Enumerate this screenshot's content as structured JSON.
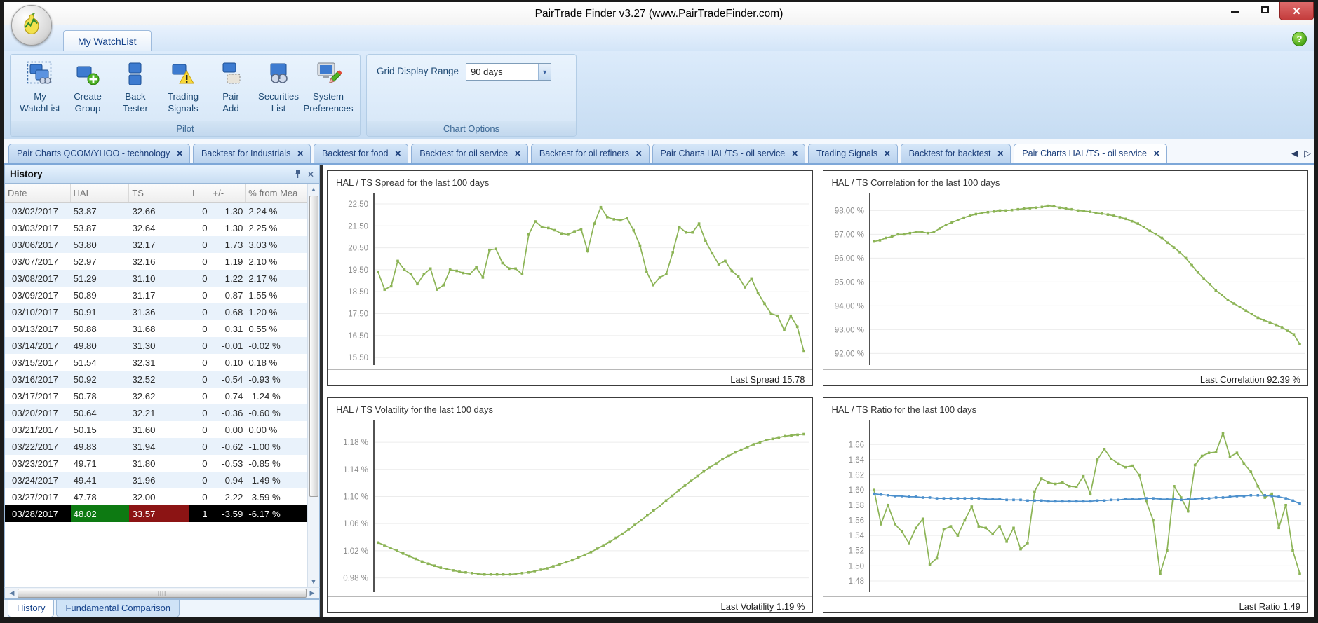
{
  "window": {
    "title": "PairTrade Finder v3.27 (www.PairTradeFinder.com)"
  },
  "icons": {
    "close": "✕",
    "help": "?",
    "dropdown_arrow": "▼",
    "scroll_up": "▲",
    "scroll_down": "▼",
    "scroll_left": "◀",
    "scroll_right": "▶",
    "tab_nav_left": "◀",
    "tab_nav_right": "▷",
    "hthumb_grip": "||||"
  },
  "ribbon": {
    "tab_first": "M",
    "tab_rest": "y WatchList",
    "pilot_caption": "Pilot",
    "chart_options_caption": "Chart Options",
    "grid_display_range_label": "Grid Display Range",
    "grid_display_range_value": "90 days",
    "buttons": [
      {
        "line1": "My",
        "line2": "WatchList",
        "icon": "my-watchlist-icon"
      },
      {
        "line1": "Create",
        "line2": "Group",
        "icon": "create-group-icon"
      },
      {
        "line1": "Back",
        "line2": "Tester",
        "icon": "back-tester-icon"
      },
      {
        "line1": "Trading",
        "line2": "Signals",
        "icon": "trading-signals-icon"
      },
      {
        "line1": "Pair",
        "line2": "Add",
        "icon": "pair-add-icon"
      },
      {
        "line1": "Securities",
        "line2": "List",
        "icon": "securities-list-icon"
      },
      {
        "line1": "System",
        "line2": "Preferences",
        "icon": "system-preferences-icon"
      }
    ]
  },
  "doc_tabs": [
    {
      "label": "Pair Charts QCOM/YHOO - technology",
      "active": false
    },
    {
      "label": "Backtest for Industrials",
      "active": false
    },
    {
      "label": "Backtest for food",
      "active": false
    },
    {
      "label": "Backtest for oil service",
      "active": false
    },
    {
      "label": "Backtest for oil refiners",
      "active": false
    },
    {
      "label": "Pair Charts HAL/TS - oil service",
      "active": false
    },
    {
      "label": "Trading Signals",
      "active": false
    },
    {
      "label": "Backtest for backtest",
      "active": false
    },
    {
      "label": "Pair Charts HAL/TS - oil service",
      "active": true
    }
  ],
  "history": {
    "title": "History",
    "columns": [
      "Date",
      "HAL",
      "TS",
      "L",
      "+/-",
      "% from Mea"
    ],
    "rows": [
      [
        "03/02/2017",
        "53.87",
        "32.66",
        "0",
        "1.30",
        "2.24 %"
      ],
      [
        "03/03/2017",
        "53.87",
        "32.64",
        "0",
        "1.30",
        "2.25 %"
      ],
      [
        "03/06/2017",
        "53.80",
        "32.17",
        "0",
        "1.73",
        "3.03 %"
      ],
      [
        "03/07/2017",
        "52.97",
        "32.16",
        "0",
        "1.19",
        "2.10 %"
      ],
      [
        "03/08/2017",
        "51.29",
        "31.10",
        "0",
        "1.22",
        "2.17 %"
      ],
      [
        "03/09/2017",
        "50.89",
        "31.17",
        "0",
        "0.87",
        "1.55 %"
      ],
      [
        "03/10/2017",
        "50.91",
        "31.36",
        "0",
        "0.68",
        "1.20 %"
      ],
      [
        "03/13/2017",
        "50.88",
        "31.68",
        "0",
        "0.31",
        "0.55 %"
      ],
      [
        "03/14/2017",
        "49.80",
        "31.30",
        "0",
        "-0.01",
        "-0.02 %"
      ],
      [
        "03/15/2017",
        "51.54",
        "32.31",
        "0",
        "0.10",
        "0.18 %"
      ],
      [
        "03/16/2017",
        "50.92",
        "32.52",
        "0",
        "-0.54",
        "-0.93 %"
      ],
      [
        "03/17/2017",
        "50.78",
        "32.62",
        "0",
        "-0.74",
        "-1.24 %"
      ],
      [
        "03/20/2017",
        "50.64",
        "32.21",
        "0",
        "-0.36",
        "-0.60 %"
      ],
      [
        "03/21/2017",
        "50.15",
        "31.60",
        "0",
        "0.00",
        "0.00 %"
      ],
      [
        "03/22/2017",
        "49.83",
        "31.94",
        "0",
        "-0.62",
        "-1.00 %"
      ],
      [
        "03/23/2017",
        "49.71",
        "31.80",
        "0",
        "-0.53",
        "-0.85 %"
      ],
      [
        "03/24/2017",
        "49.41",
        "31.96",
        "0",
        "-0.94",
        "-1.49 %"
      ],
      [
        "03/27/2017",
        "47.78",
        "32.00",
        "0",
        "-2.22",
        "-3.59 %"
      ],
      [
        "03/28/2017",
        "48.02",
        "33.57",
        "1",
        "-3.59",
        "-6.17 %"
      ]
    ],
    "selected_row_index": 18,
    "bottom_tabs": [
      {
        "label": "History",
        "active": true
      },
      {
        "label": "Fundamental Comparison",
        "active": false
      }
    ]
  },
  "chart_data": [
    {
      "id": "spread",
      "type": "line",
      "title": "HAL / TS Spread  for the last 100 days",
      "last_label": "Last Spread 15.78",
      "ylim": [
        15.25,
        22.85
      ],
      "ytick_values": [
        22.5,
        21.5,
        20.5,
        19.5,
        18.5,
        17.5,
        16.5,
        15.5
      ],
      "ytick_labels": [
        "22.50",
        "21.50",
        "20.50",
        "19.50",
        "18.50",
        "17.50",
        "16.50",
        "15.50"
      ],
      "series": [
        {
          "name": "spread",
          "color": "#8cb456",
          "values": [
            19.4,
            18.6,
            18.75,
            19.9,
            19.5,
            19.3,
            18.85,
            19.3,
            19.55,
            18.6,
            18.8,
            19.5,
            19.45,
            19.35,
            19.3,
            19.6,
            19.15,
            20.4,
            20.45,
            19.8,
            19.55,
            19.55,
            19.3,
            21.1,
            21.7,
            21.45,
            21.4,
            21.3,
            21.15,
            21.1,
            21.25,
            21.35,
            20.35,
            21.6,
            22.35,
            21.9,
            21.8,
            21.75,
            21.85,
            21.3,
            20.6,
            19.4,
            18.8,
            19.15,
            19.3,
            20.3,
            21.45,
            21.2,
            21.2,
            21.6,
            20.8,
            20.25,
            19.75,
            19.9,
            19.45,
            19.2,
            18.7,
            19.1,
            18.45,
            17.95,
            17.5,
            17.4,
            16.75,
            17.4,
            16.9,
            15.78
          ]
        }
      ]
    },
    {
      "id": "correlation",
      "type": "line",
      "title": "HAL / TS Correlation  for the last 100 days",
      "last_label": "Last Correlation 92.39 %",
      "ylim": [
        91.6,
        98.6
      ],
      "ytick_values": [
        98,
        97,
        96,
        95,
        94,
        93,
        92
      ],
      "ytick_labels": [
        "98.00 %",
        "97.00 %",
        "96.00 %",
        "95.00 %",
        "94.00 %",
        "93.00 %",
        "92.00 %"
      ],
      "series": [
        {
          "name": "correlation",
          "color": "#8cb456",
          "values": [
            96.7,
            96.75,
            96.85,
            96.9,
            97.0,
            97.0,
            97.05,
            97.1,
            97.1,
            97.05,
            97.1,
            97.25,
            97.4,
            97.5,
            97.6,
            97.7,
            97.78,
            97.85,
            97.9,
            97.93,
            97.96,
            98.0,
            98.0,
            98.02,
            98.05,
            98.08,
            98.1,
            98.12,
            98.15,
            98.2,
            98.18,
            98.12,
            98.08,
            98.05,
            98.0,
            97.98,
            97.95,
            97.9,
            97.87,
            97.83,
            97.78,
            97.72,
            97.65,
            97.55,
            97.45,
            97.3,
            97.15,
            97.0,
            96.85,
            96.65,
            96.45,
            96.25,
            96.0,
            95.7,
            95.4,
            95.15,
            94.9,
            94.65,
            94.45,
            94.25,
            94.1,
            93.95,
            93.8,
            93.65,
            93.5,
            93.4,
            93.3,
            93.2,
            93.1,
            92.95,
            92.8,
            92.39
          ]
        }
      ]
    },
    {
      "id": "volatility",
      "type": "line",
      "title": "HAL / TS Volatility  for the last 100 days",
      "last_label": "Last Volatility 1.19 %",
      "ylim": [
        0.962,
        1.208
      ],
      "ytick_values": [
        1.18,
        1.14,
        1.1,
        1.06,
        1.02,
        0.98
      ],
      "ytick_labels": [
        "1.18 %",
        "1.14 %",
        "1.10 %",
        "1.06 %",
        "1.02 %",
        "0.98 %"
      ],
      "series": [
        {
          "name": "volatility",
          "color": "#8cb456",
          "values": [
            1.032,
            1.028,
            1.024,
            1.02,
            1.016,
            1.012,
            1.008,
            1.004,
            1.001,
            0.998,
            0.995,
            0.993,
            0.991,
            0.989,
            0.988,
            0.987,
            0.986,
            0.985,
            0.985,
            0.985,
            0.985,
            0.985,
            0.986,
            0.987,
            0.988,
            0.99,
            0.992,
            0.994,
            0.997,
            1.0,
            1.003,
            1.006,
            1.01,
            1.014,
            1.018,
            1.023,
            1.028,
            1.033,
            1.039,
            1.045,
            1.051,
            1.058,
            1.065,
            1.072,
            1.079,
            1.086,
            1.094,
            1.101,
            1.109,
            1.116,
            1.123,
            1.13,
            1.137,
            1.143,
            1.149,
            1.155,
            1.16,
            1.165,
            1.169,
            1.173,
            1.177,
            1.18,
            1.183,
            1.185,
            1.187,
            1.189,
            1.19,
            1.191,
            1.192
          ]
        }
      ]
    },
    {
      "id": "ratio",
      "type": "line",
      "title": "HAL / TS Ratio  for the last 100 days",
      "last_label": "Last Ratio 1.49",
      "ylim": [
        1.468,
        1.688
      ],
      "ytick_values": [
        1.66,
        1.64,
        1.62,
        1.6,
        1.58,
        1.56,
        1.54,
        1.52,
        1.5,
        1.48
      ],
      "ytick_labels": [
        "1.66",
        "1.64",
        "1.62",
        "1.60",
        "1.58",
        "1.56",
        "1.54",
        "1.52",
        "1.50",
        "1.48"
      ],
      "series": [
        {
          "name": "ratio",
          "color": "#8cb456",
          "values": [
            1.6,
            1.555,
            1.58,
            1.555,
            1.545,
            1.53,
            1.55,
            1.562,
            1.502,
            1.51,
            1.548,
            1.552,
            1.54,
            1.56,
            1.578,
            1.552,
            1.55,
            1.542,
            1.552,
            1.532,
            1.55,
            1.522,
            1.53,
            1.598,
            1.615,
            1.61,
            1.608,
            1.61,
            1.605,
            1.604,
            1.618,
            1.595,
            1.64,
            1.654,
            1.641,
            1.635,
            1.63,
            1.632,
            1.62,
            1.585,
            1.56,
            1.49,
            1.52,
            1.605,
            1.59,
            1.572,
            1.633,
            1.645,
            1.649,
            1.65,
            1.675,
            1.644,
            1.649,
            1.635,
            1.624,
            1.605,
            1.59,
            1.595,
            1.55,
            1.58,
            1.52,
            1.49
          ]
        },
        {
          "name": "mean",
          "color": "#4b8fcc",
          "values": [
            1.595,
            1.594,
            1.593,
            1.592,
            1.592,
            1.591,
            1.591,
            1.59,
            1.59,
            1.589,
            1.589,
            1.589,
            1.589,
            1.589,
            1.589,
            1.589,
            1.588,
            1.588,
            1.588,
            1.587,
            1.587,
            1.587,
            1.586,
            1.586,
            1.586,
            1.585,
            1.585,
            1.585,
            1.585,
            1.585,
            1.585,
            1.585,
            1.586,
            1.586,
            1.587,
            1.587,
            1.588,
            1.588,
            1.588,
            1.589,
            1.589,
            1.588,
            1.588,
            1.588,
            1.587,
            1.588,
            1.588,
            1.589,
            1.589,
            1.59,
            1.59,
            1.591,
            1.592,
            1.592,
            1.593,
            1.593,
            1.593,
            1.592,
            1.591,
            1.589,
            1.586,
            1.582
          ]
        }
      ]
    }
  ],
  "colors": {
    "accent_green_line": "#8cb456",
    "accent_blue_line": "#4b8fcc",
    "selected_row_bg": "#000000",
    "selected_hal_bg": "#0d7a12",
    "selected_ts_bg": "#8c1414",
    "close_button_bg": "#c43c3c",
    "ribbon_text": "#15428b"
  }
}
